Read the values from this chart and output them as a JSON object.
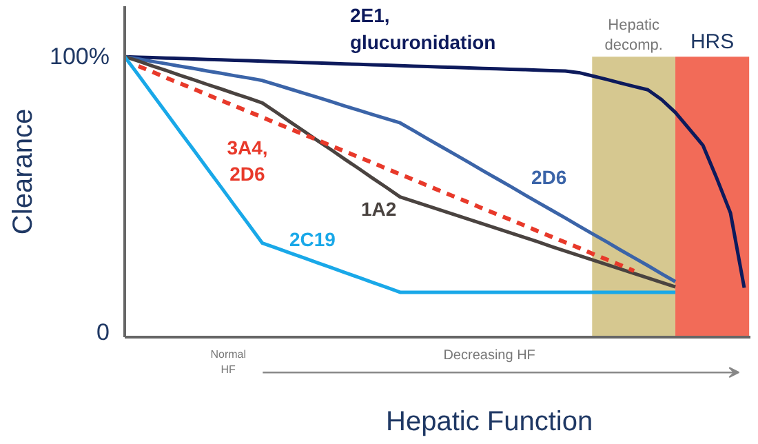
{
  "chart_data": {
    "type": "line",
    "xlabel": "Hepatic Function",
    "ylabel": "Clearance",
    "categories": [
      null,
      null,
      null,
      null,
      null,
      null,
      null,
      null,
      null,
      null,
      null,
      null,
      null,
      null,
      null,
      null,
      null,
      null,
      null,
      null,
      null,
      null,
      null,
      null,
      null,
      null,
      null,
      null,
      null,
      null,
      null,
      null,
      null,
      null,
      null,
      null,
      null,
      null,
      null,
      null,
      null,
      null,
      null,
      null,
      null,
      null
    ],
    "ylim": [
      0,
      118
    ],
    "yticks": [
      {
        "value": 0,
        "label": "0"
      },
      {
        "value": 100,
        "label": "100%"
      }
    ],
    "tick_labels": "y",
    "grid": false,
    "marker": "none",
    "annotations": [
      "Normal\nHF",
      "Decreasing HF",
      "Hepatic\ndecomp.",
      "HRS"
    ],
    "series": [
      {
        "name": "2E1,\nglucuronidation",
        "color": "#0d1a5c",
        "line_style": "solid",
        "values": [
          100,
          99.8,
          99.7,
          99.5,
          99.4,
          99.2,
          99,
          98.9,
          98.7,
          98.6,
          98.4,
          98.2,
          98.1,
          97.9,
          97.8,
          97.6,
          97.4,
          97.3,
          97.1,
          97,
          96.8,
          96.6,
          96.5,
          96.3,
          96.2,
          96,
          95.8,
          95.7,
          95.5,
          95.4,
          95.2,
          95,
          94.9,
          94.3,
          93.1,
          91.9,
          90.6,
          89.4,
          88.2,
          84.7,
          80.1,
          74.3,
          68.4,
          56.7,
          44.3,
          17.6
        ]
      },
      {
        "name": "2D6",
        "color": "#3b64a8",
        "line_style": "solid",
        "values": [
          100,
          99.2,
          98.3,
          97.5,
          96.6,
          95.8,
          94.9,
          94.1,
          93.2,
          92.4,
          91.5,
          90,
          88.5,
          87,
          85.5,
          84,
          82.4,
          80.9,
          79.4,
          77.9,
          76.4,
          73.6,
          70.7,
          67.9,
          65.1,
          62.3,
          59.4,
          56.6,
          53.8,
          50.9,
          48.1,
          45.3,
          42.5,
          39.6,
          36.8,
          34,
          31.1,
          28.3,
          25.5,
          22.6,
          19.8,
          null,
          null,
          null,
          null,
          null
        ]
      },
      {
        "name": "1A2",
        "color": "#4a4340",
        "line_style": "solid",
        "values": [
          100,
          98.4,
          96.7,
          95.1,
          93.4,
          91.8,
          90.1,
          88.5,
          86.8,
          85.2,
          83.5,
          80.2,
          76.8,
          73.5,
          70.1,
          66.8,
          63.4,
          60.1,
          56.7,
          53.4,
          50,
          48.4,
          46.8,
          45.2,
          43.6,
          42,
          40.4,
          38.8,
          37.2,
          35.6,
          34,
          32.3,
          30.7,
          29.1,
          27.5,
          25.9,
          24.3,
          22.7,
          21.1,
          19.5,
          17.9,
          null,
          null,
          null,
          null,
          null
        ]
      },
      {
        "name": "3A4,\n2D6",
        "color": "#e8392a",
        "line_style": "dashed",
        "values": [
          null,
          96.6,
          94.6,
          92.5,
          90.5,
          88.5,
          86.5,
          84.4,
          82.4,
          80.4,
          78.4,
          76.3,
          74.3,
          72.3,
          70.3,
          68.2,
          66.2,
          64.2,
          62.2,
          60.1,
          58.1,
          56.1,
          54.0,
          52.0,
          50.0,
          48.0,
          45.9,
          43.9,
          41.9,
          39.9,
          37.8,
          35.8,
          33.8,
          31.8,
          29.7,
          27.7,
          25.7,
          23.6,
          null,
          null,
          null,
          null,
          null,
          null,
          null,
          null
        ]
      },
      {
        "name": "2C19",
        "color": "#19a8e8",
        "line_style": "solid",
        "values": [
          100,
          93.4,
          86.7,
          80.1,
          73.4,
          66.8,
          60.1,
          53.5,
          46.8,
          40.2,
          33.5,
          31.8,
          30,
          28.3,
          26.5,
          24.8,
          23,
          21.3,
          19.5,
          17.8,
          16,
          16,
          16,
          16,
          16,
          16,
          16,
          16,
          16,
          16,
          16,
          16,
          16,
          16,
          16,
          16,
          16,
          16,
          16,
          16,
          16,
          null,
          null,
          null,
          null,
          null
        ]
      }
    ]
  }
}
